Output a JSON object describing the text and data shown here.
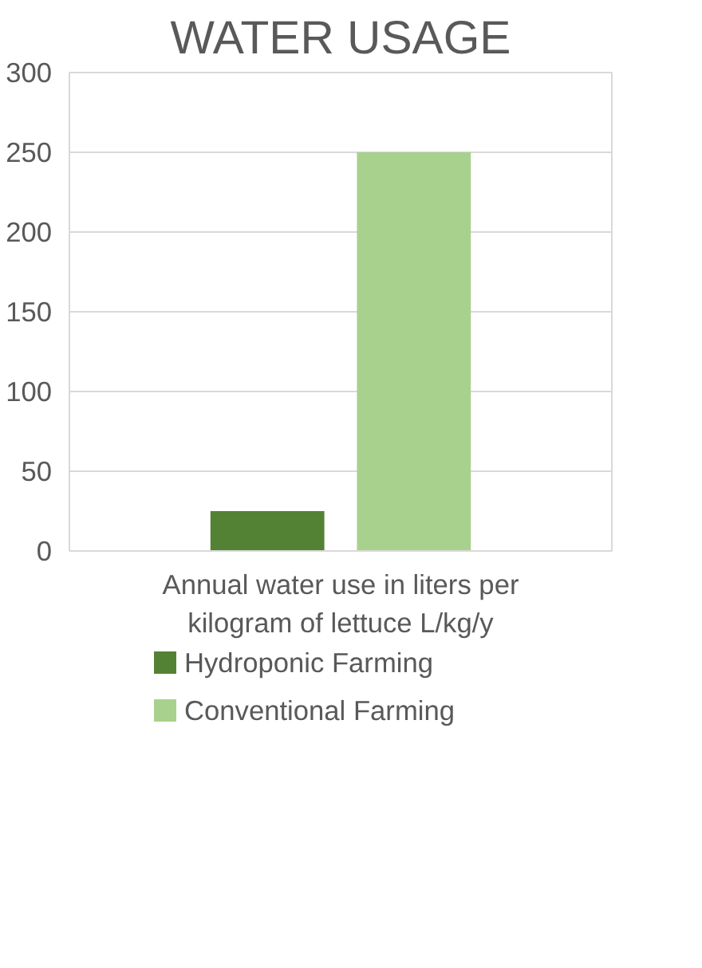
{
  "chart_data": {
    "type": "bar",
    "title": "WATER USAGE",
    "categories": [
      "Annual water use in liters per kilogram of lettuce L/kg/y"
    ],
    "series": [
      {
        "name": "Hydroponic Farming",
        "color": "#548235",
        "values": [
          25
        ]
      },
      {
        "name": "Conventional Farming",
        "color": "#a9d18e",
        "values": [
          250
        ]
      }
    ],
    "ylim": [
      0,
      300
    ],
    "yticks": [
      0,
      50,
      100,
      150,
      200,
      250,
      300
    ],
    "grid": "y",
    "legend": "bottom"
  }
}
